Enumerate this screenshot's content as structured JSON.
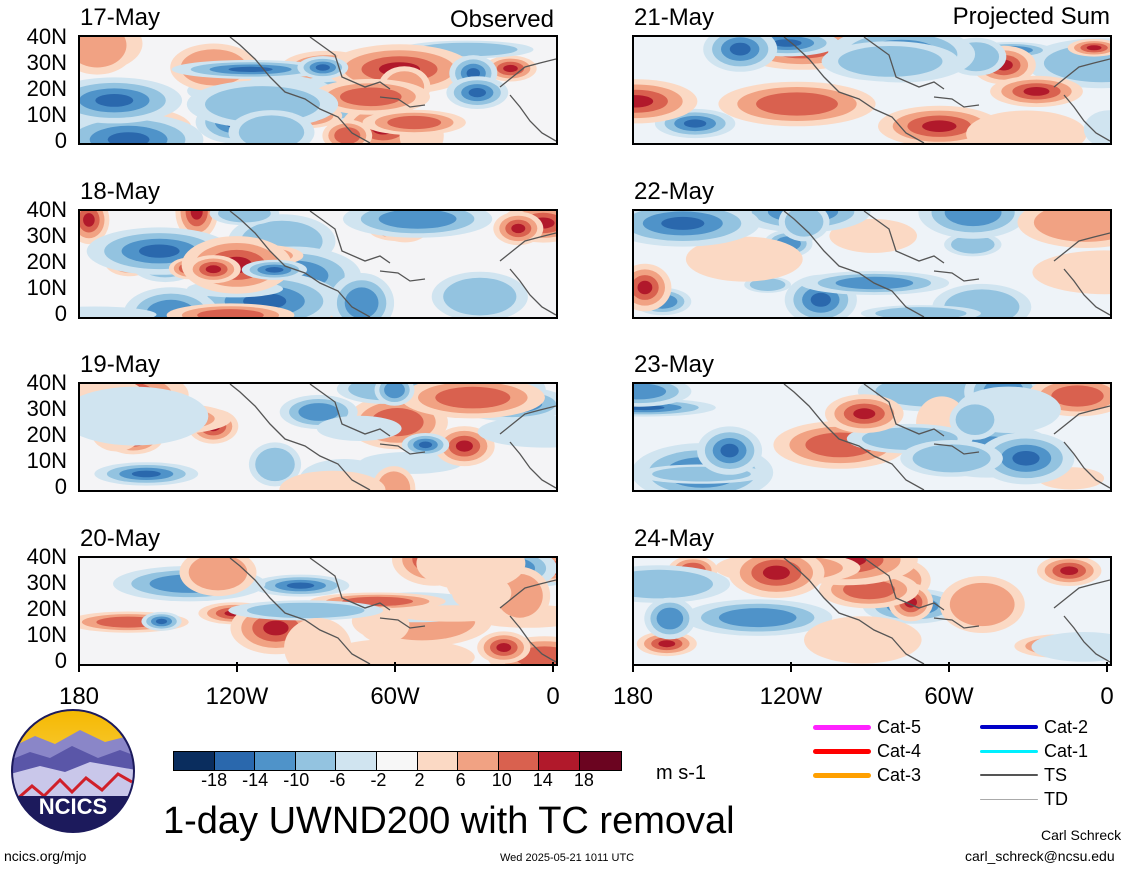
{
  "columns": {
    "left_heading": "Observed",
    "right_heading": "Projected Sum"
  },
  "panels": [
    {
      "date": "17-May",
      "column": "left",
      "row": 0
    },
    {
      "date": "18-May",
      "column": "left",
      "row": 1
    },
    {
      "date": "19-May",
      "column": "left",
      "row": 2
    },
    {
      "date": "20-May",
      "column": "left",
      "row": 3
    },
    {
      "date": "21-May",
      "column": "right",
      "row": 0
    },
    {
      "date": "22-May",
      "column": "right",
      "row": 1
    },
    {
      "date": "23-May",
      "column": "right",
      "row": 2
    },
    {
      "date": "24-May",
      "column": "right",
      "row": 3
    }
  ],
  "y_axis_labels": [
    "40N",
    "30N",
    "20N",
    "10N",
    "0"
  ],
  "x_axis_labels": [
    "180",
    "120W",
    "60W",
    "0"
  ],
  "colorbar": {
    "colors": [
      "#0a2d5e",
      "#2a68ad",
      "#4f93c9",
      "#93c3e0",
      "#d0e4f0",
      "#f7f7f7",
      "#fbd9c4",
      "#f1a283",
      "#d9614f",
      "#b1192b",
      "#6b0420"
    ],
    "tick_labels": [
      "-18",
      "-14",
      "-10",
      "-6",
      "-2",
      "2",
      "6",
      "10",
      "14",
      "18"
    ],
    "units": "m s-1"
  },
  "title": "1-day UWND200 with TC removal",
  "legend": [
    {
      "label": "Cat-5",
      "color": "#ff22ff"
    },
    {
      "label": "Cat-4",
      "color": "#ff0000"
    },
    {
      "label": "Cat-3",
      "color": "#ffa000"
    },
    {
      "label": "Cat-2",
      "color": "#0000c8"
    },
    {
      "label": "Cat-1",
      "color": "#00f0ff"
    },
    {
      "label": "TS",
      "color": "#555555"
    },
    {
      "label": "TD",
      "color": "#aaaaaa"
    }
  ],
  "logo": {
    "text": "NCICS"
  },
  "footer": {
    "url": "ncics.org/mjo",
    "timestamp": "Wed 2025-05-21 1011 UTC",
    "author": "Carl Schreck",
    "email": "carl_schreck@ncsu.edu"
  }
}
